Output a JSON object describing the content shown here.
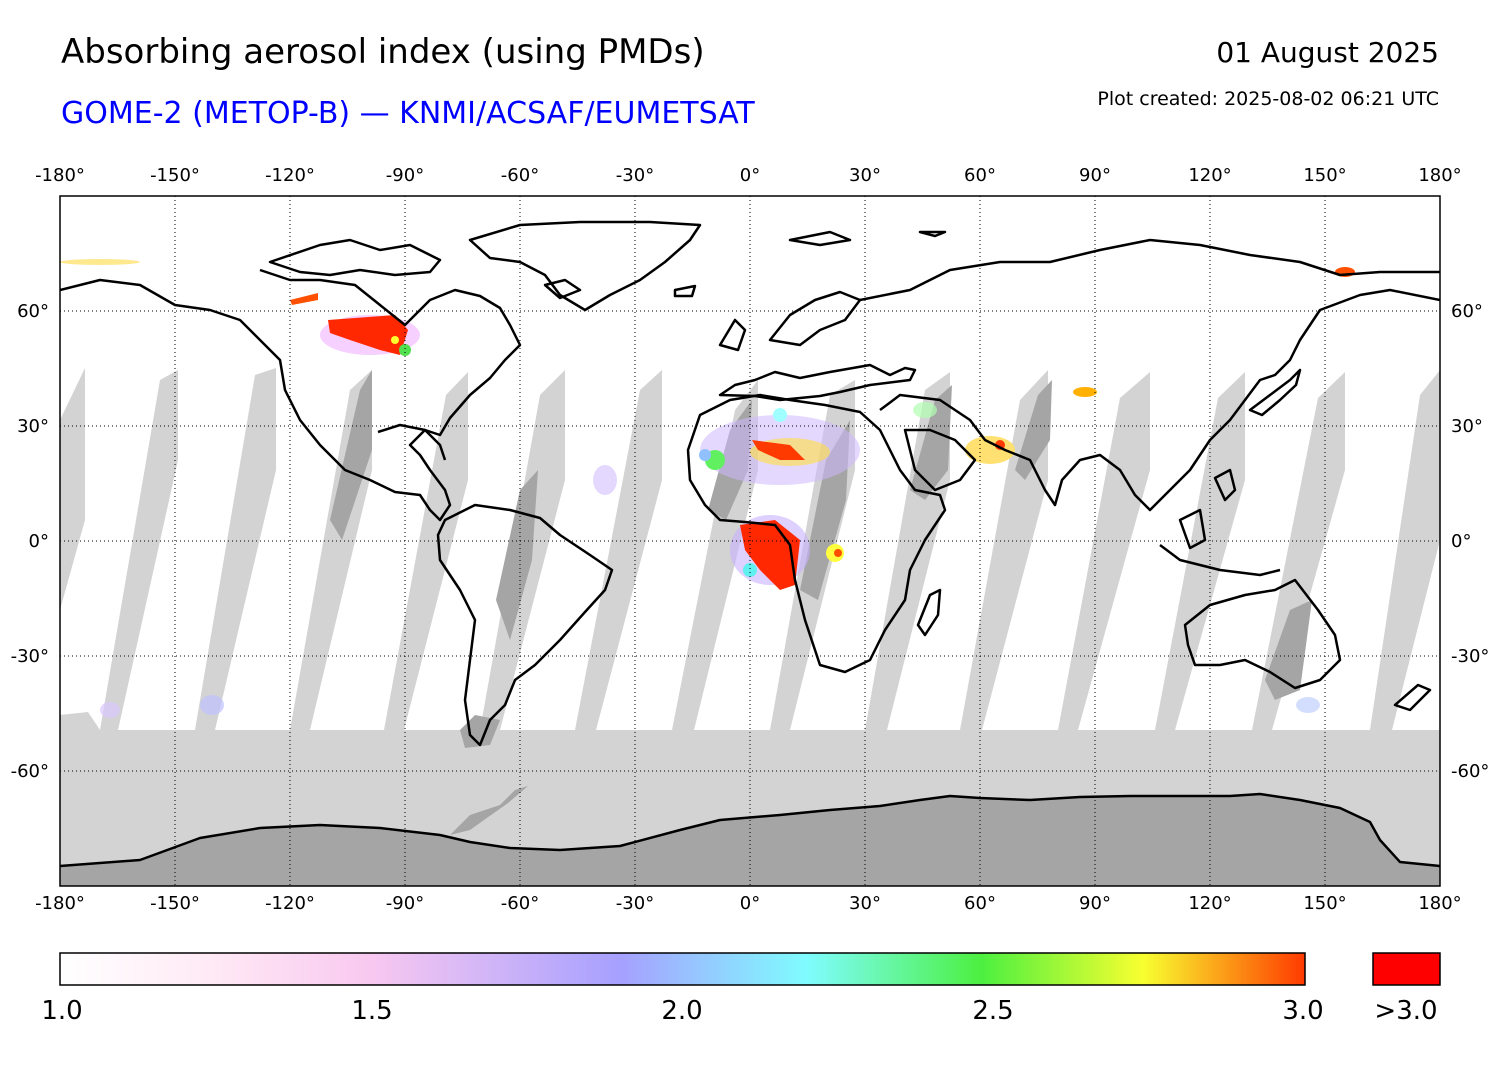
{
  "title": "Absorbing aerosol index (using PMDs)",
  "subtitle": "GOME-2 (METOP-B) — KNMI/ACSAF/EUMETSAT",
  "date": "01 August 2025",
  "plot_created": "Plot created: 2025-08-02 06:21 UTC",
  "map": {
    "lon_ticks": [
      "-180°",
      "-150°",
      "-120°",
      "-90°",
      "-60°",
      "-30°",
      "0°",
      "30°",
      "60°",
      "90°",
      "120°",
      "150°",
      "180°"
    ],
    "lat_ticks_left": [
      "60°",
      "30°",
      "0°",
      "-30°",
      "-60°"
    ],
    "lat_ticks_right": [
      "60°",
      "30°",
      "0°",
      "-30°",
      "-60°"
    ],
    "lon_range": [
      -180,
      180
    ],
    "lat_range": [
      -90,
      90
    ],
    "colors": {
      "no_data": "#d3d3d3",
      "night_polar": "#a5a5a5",
      "coast": "#000000",
      "high_aerosol": "#ff2800"
    }
  },
  "colorbar": {
    "range": [
      1.0,
      3.0
    ],
    "ticks": [
      "1.0",
      "1.5",
      "2.0",
      "2.5",
      "3.0"
    ],
    "overflow_label": ">3.0",
    "overflow_color": "#ff0000",
    "gradient_stops": [
      "#ffffff",
      "#ffccee",
      "#aaa0ff",
      "#80ffff",
      "#50f050",
      "#ffff30",
      "#ff8000",
      "#ff3300"
    ]
  }
}
